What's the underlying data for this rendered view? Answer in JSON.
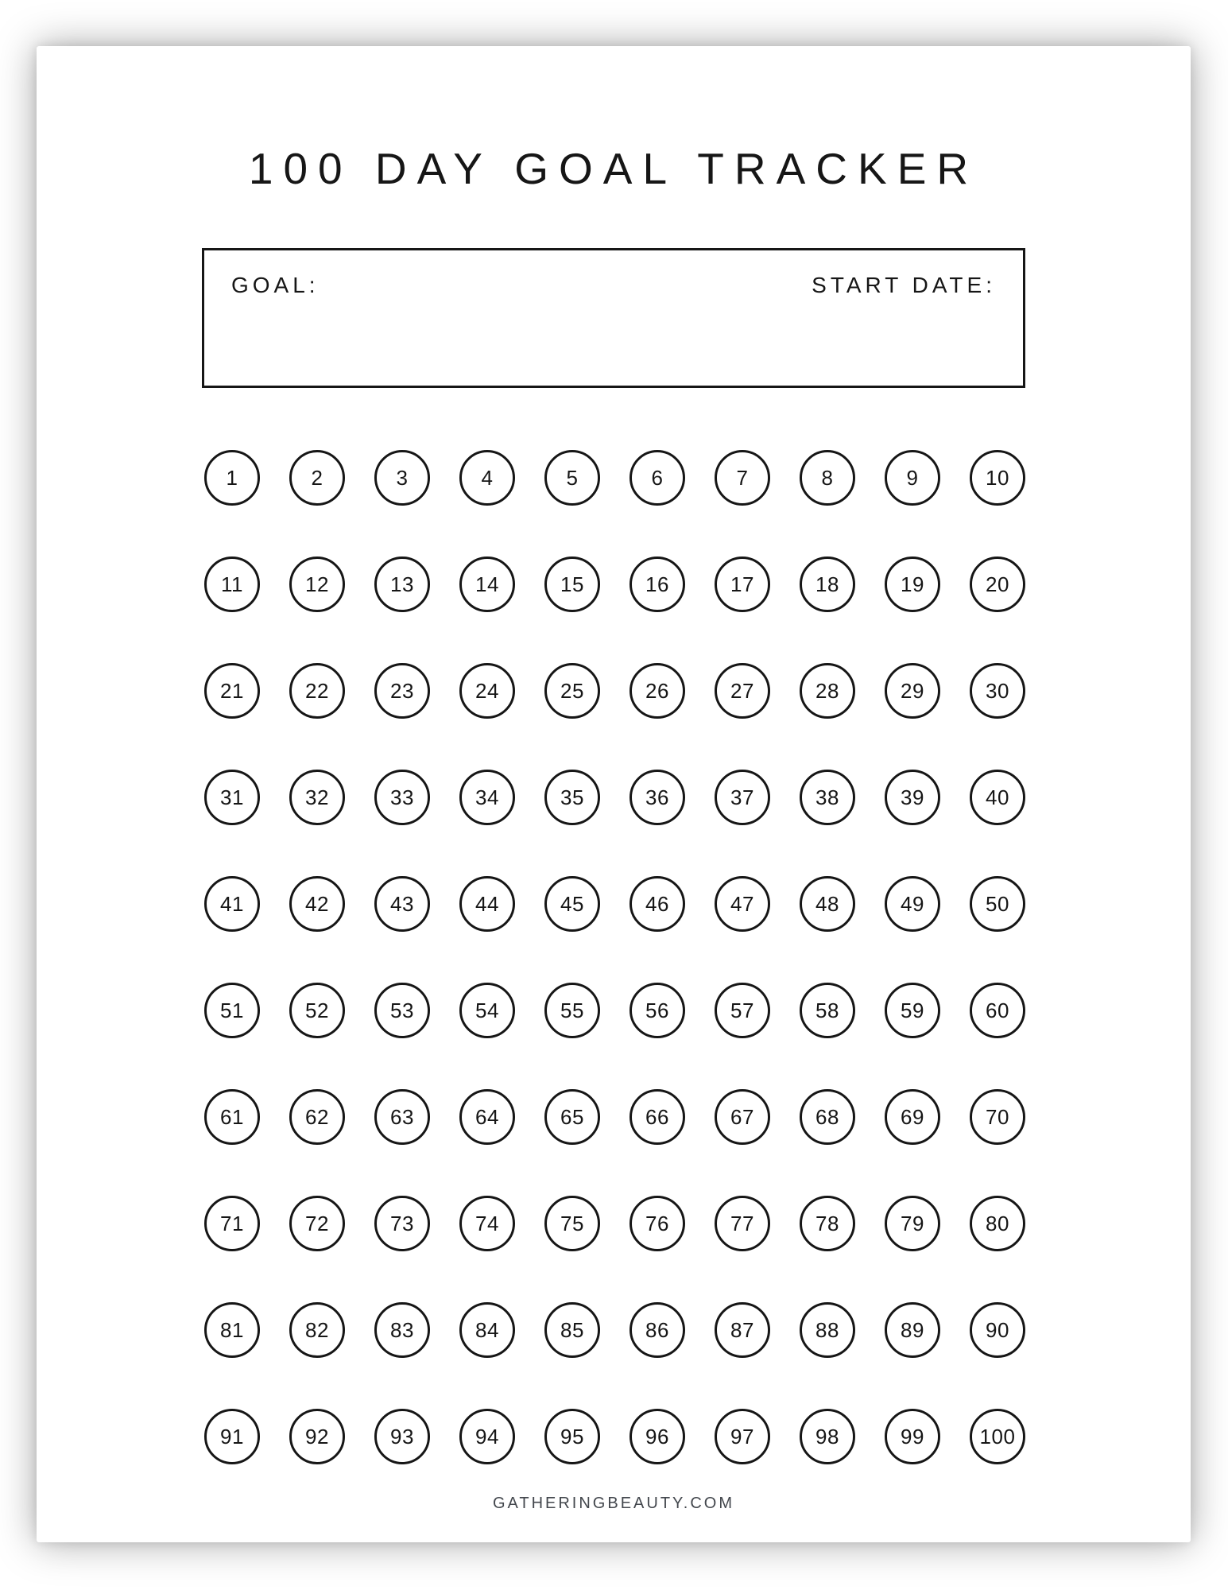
{
  "title": "100 DAY GOAL TRACKER",
  "form": {
    "goal_label": "GOAL:",
    "goal_value": "",
    "start_date_label": "START DATE:",
    "start_date_value": ""
  },
  "tracker": {
    "days": [
      1,
      2,
      3,
      4,
      5,
      6,
      7,
      8,
      9,
      10,
      11,
      12,
      13,
      14,
      15,
      16,
      17,
      18,
      19,
      20,
      21,
      22,
      23,
      24,
      25,
      26,
      27,
      28,
      29,
      30,
      31,
      32,
      33,
      34,
      35,
      36,
      37,
      38,
      39,
      40,
      41,
      42,
      43,
      44,
      45,
      46,
      47,
      48,
      49,
      50,
      51,
      52,
      53,
      54,
      55,
      56,
      57,
      58,
      59,
      60,
      61,
      62,
      63,
      64,
      65,
      66,
      67,
      68,
      69,
      70,
      71,
      72,
      73,
      74,
      75,
      76,
      77,
      78,
      79,
      80,
      81,
      82,
      83,
      84,
      85,
      86,
      87,
      88,
      89,
      90,
      91,
      92,
      93,
      94,
      95,
      96,
      97,
      98,
      99,
      100
    ]
  },
  "footer": {
    "site": "GATHERINGBEAUTY.COM"
  },
  "colors": {
    "ink": "#161616",
    "footer_text": "#43474d"
  }
}
